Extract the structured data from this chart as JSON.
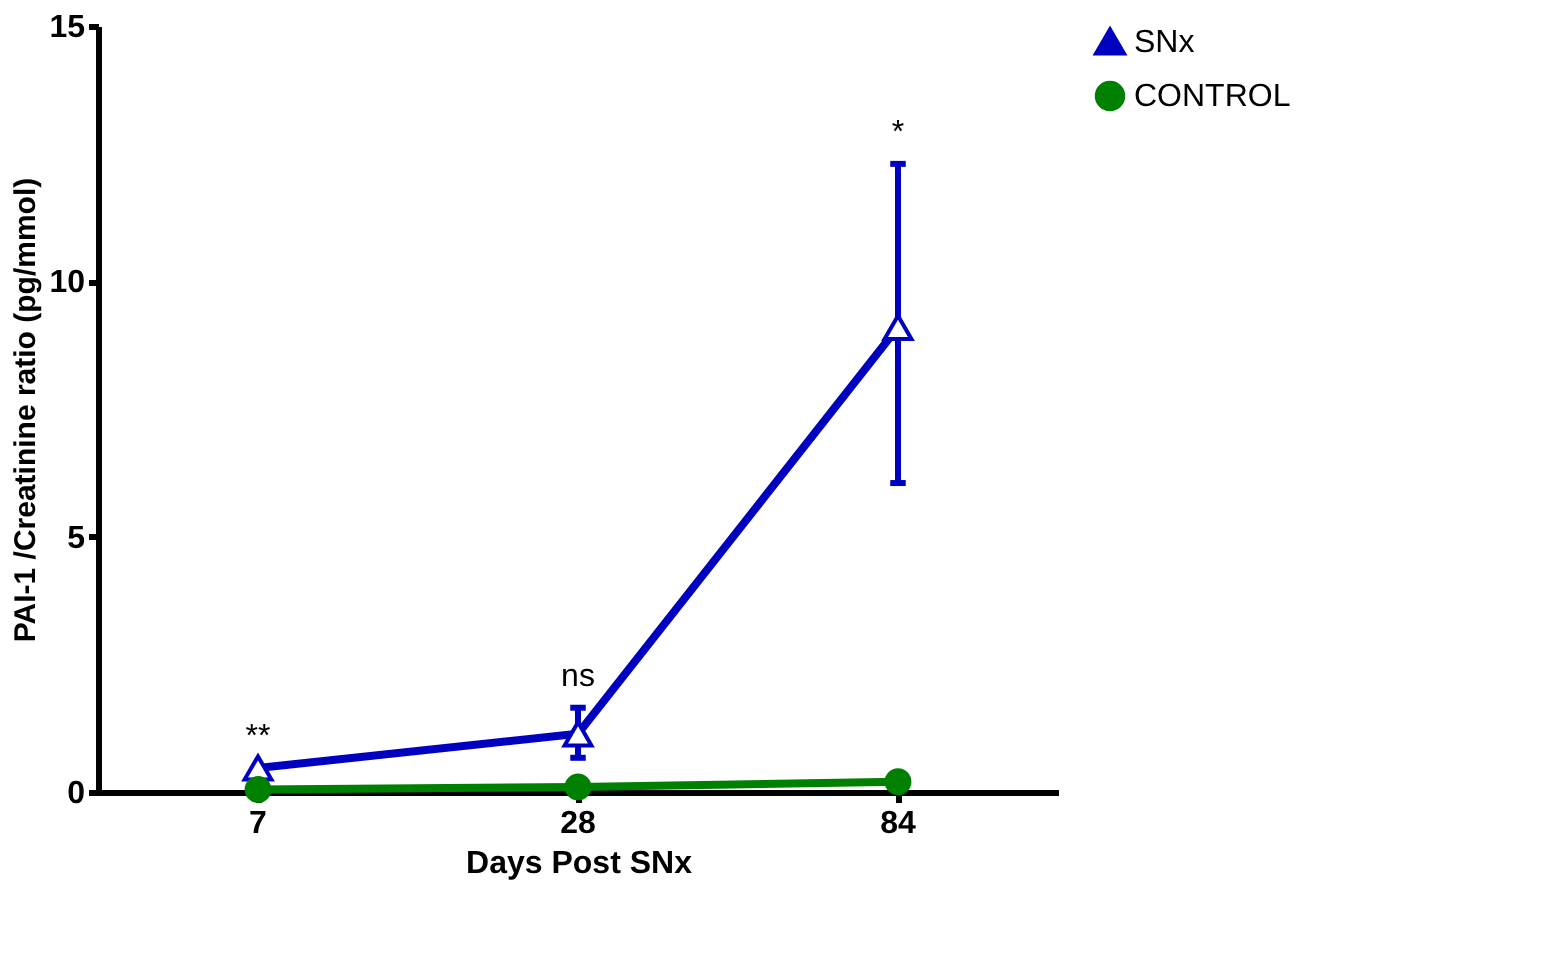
{
  "chart_data": {
    "type": "line",
    "xlabel": "Days Post SNx",
    "ylabel": "PAI-1 /Creatinine ratio (pg/mmol)",
    "categories": [
      "7",
      "28",
      "84"
    ],
    "series": [
      {
        "name": "SNx",
        "color": "#0000c0",
        "marker": "triangle",
        "values": [
          0.47,
          1.14,
          9.1
        ],
        "errors": [
          null,
          [
            0.67,
            1.65
          ],
          [
            6.05,
            12.3
          ]
        ]
      },
      {
        "name": "CONTROL",
        "color": "#008000",
        "marker": "circle",
        "values": [
          0.05,
          0.1,
          0.2
        ]
      }
    ],
    "annotations": [
      {
        "text": "**",
        "x": "7",
        "y": 0.47
      },
      {
        "text": "ns",
        "x": "28",
        "y": 1.65
      },
      {
        "text": "*",
        "x": "84",
        "y": 12.3
      }
    ],
    "ylim": [
      0,
      15
    ],
    "yticks": [
      0,
      5,
      10,
      15
    ],
    "grid": false,
    "legend": "right",
    "line_style": "solid"
  }
}
